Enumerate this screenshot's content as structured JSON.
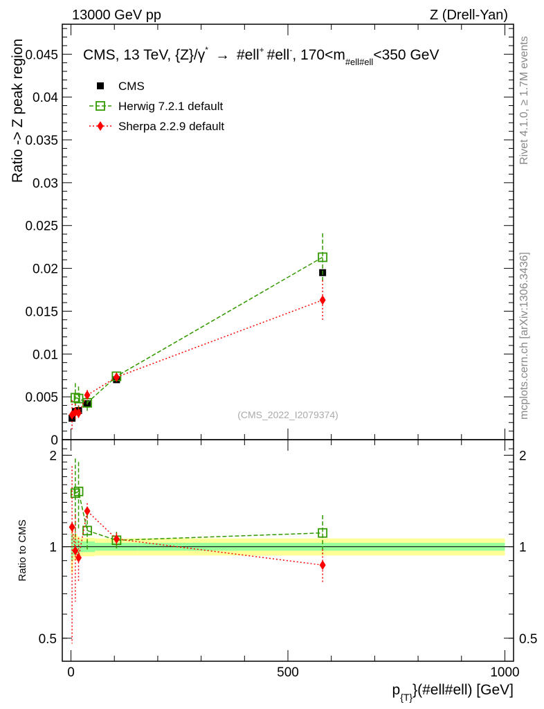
{
  "header": {
    "left": "13000 GeV pp",
    "right": "Z (Drell-Yan)"
  },
  "side": {
    "rivet": "Rivet 4.1.0, ≥ 1.7M events",
    "mcplots": "mcplots.cern.ch [arXiv:1306.3436]"
  },
  "chart_data": {
    "type": "scatter",
    "title": "CMS, 13 TeV, {Z}/γ* → #ell+ #ell-, 170<m_#ell#ell<350 GeV",
    "title_parts": {
      "main": "CMS, 13 TeV, {Z}/γ",
      "star": "*",
      "arrow": "→",
      "l1": "#ell",
      "plus": "+",
      "l2": "#ell",
      "minus": "-",
      "range1": ", 170<m",
      "sub": "#ell#ell",
      "range2": "<350 GeV"
    },
    "watermark": "(CMS_2022_I2079374)",
    "xlabel": "p_{T}(#ell#ell) [GeV]",
    "xlabel_parts": {
      "p": "p",
      "sub": "{T}",
      "rest": "}(#ell#ell) [GeV]"
    },
    "ylabel": "Ratio -> Z peak region",
    "ratio_ylabel": "Ratio to CMS",
    "xlim": [
      -20,
      1020
    ],
    "ylim": [
      0,
      0.0485
    ],
    "ratio_ylim": [
      0.42,
      2.25
    ],
    "ratio_scale": "log",
    "xticks": [
      0,
      500,
      1000
    ],
    "yticks": [
      0,
      0.005,
      0.01,
      0.015,
      0.02,
      0.025,
      0.03,
      0.035,
      0.04,
      0.045
    ],
    "ytick_labels": [
      "0",
      "0.005",
      "0.01",
      "0.015",
      "0.02",
      "0.025",
      "0.03",
      "0.035",
      "0.04",
      "0.045"
    ],
    "ratio_yticks": [
      0.5,
      1,
      2
    ],
    "ratio_ytick_labels": [
      "0.5",
      "1",
      "2"
    ],
    "legend_position": "top-left",
    "x": [
      2.5,
      10,
      17.5,
      37.5,
      105,
      580
    ],
    "series": [
      {
        "name": "CMS",
        "color": "#000000",
        "marker": "square",
        "values": [
          0.0025,
          0.0033,
          0.0034,
          0.0042,
          0.007,
          0.0195
        ],
        "err": [
          0.0002,
          0.0002,
          0.0002,
          0.0002,
          0.0002,
          0.0004
        ],
        "band_inner": [
          0.1,
          0.06,
          0.05,
          0.04,
          0.03,
          0.03
        ],
        "band_outer": [
          0.18,
          0.1,
          0.08,
          0.07,
          0.065,
          0.065
        ]
      },
      {
        "name": "Herwig 7.2.1 default",
        "color": "#339900",
        "marker": "open-square",
        "values": [
          null,
          0.0049,
          0.0048,
          0.0043,
          0.0074,
          0.0213
        ],
        "err": [
          null,
          0.0017,
          0.0014,
          0.001,
          0.0004,
          0.0028
        ],
        "ratio": [
          null,
          1.5,
          1.52,
          1.13,
          1.05,
          1.11
        ],
        "ratio_err": [
          null,
          0.45,
          0.38,
          0.15,
          0.07,
          0.16
        ]
      },
      {
        "name": "Sherpa 2.2.9 default",
        "color": "#ff0000",
        "marker": "diamond",
        "values": [
          0.0029,
          0.0032,
          0.0031,
          0.0052,
          0.0073,
          0.0163
        ],
        "err": [
          0.0017,
          0.001,
          0.0008,
          0.0006,
          0.0004,
          0.0023
        ],
        "ratio": [
          1.16,
          0.97,
          0.92,
          1.31,
          1.06,
          0.87
        ],
        "ratio_err": [
          0.68,
          0.31,
          0.15,
          0.08,
          0.05,
          0.11
        ]
      }
    ]
  }
}
